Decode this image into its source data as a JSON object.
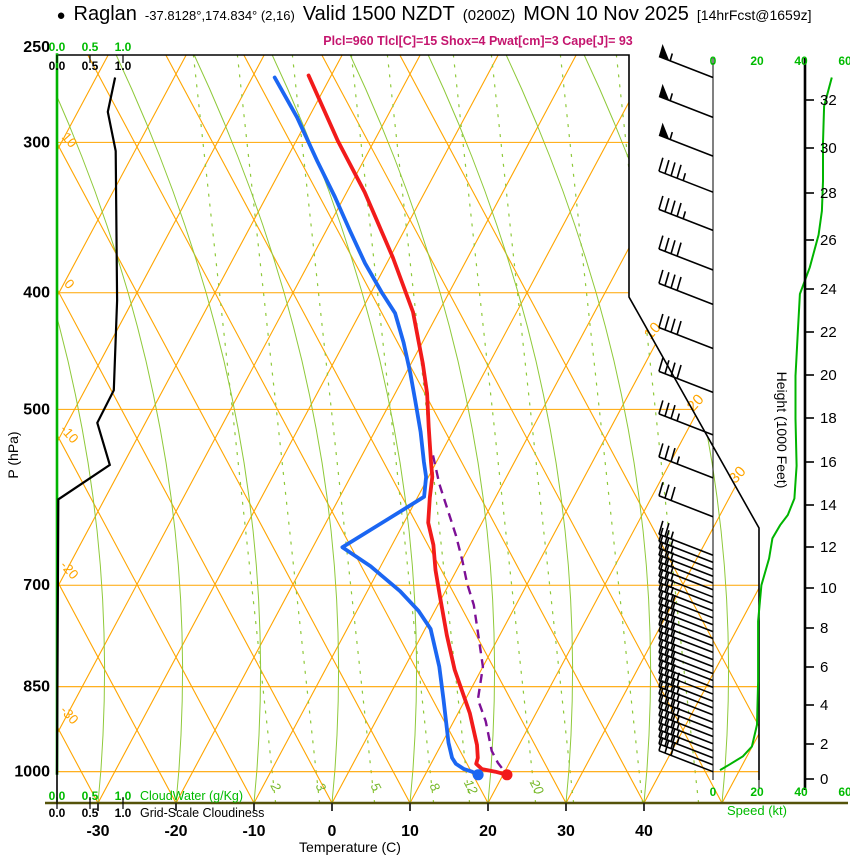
{
  "header": {
    "bullet": "●",
    "station": "Raglan",
    "coords": "-37.8128°,174.834° (2,16)",
    "valid": "Valid 1500 NZDT",
    "zulu": "(0200Z)",
    "date": "MON 10 Nov 2025",
    "fcst": "[14hrFcst@1659z]",
    "params": "Plcl=960 Tlcl[C]=15 Shox=4 Pwat[cm]=3 Cape[J]= 93"
  },
  "axes": {
    "pressure": {
      "label": "P (hPa)",
      "ticks": [
        250,
        300,
        400,
        500,
        700,
        850,
        1000
      ]
    },
    "temperature": {
      "label": "Temperature (C)",
      "ticks": [
        -30,
        -20,
        -10,
        0,
        10,
        20,
        30,
        40
      ]
    },
    "height": {
      "label": "Height (1000 Feet)",
      "ticks": [
        0,
        2,
        4,
        6,
        8,
        10,
        12,
        14,
        16,
        18,
        20,
        22,
        24,
        26,
        28,
        30,
        32
      ]
    },
    "speed": {
      "label": "Speed (kt)",
      "ticks": [
        0,
        20,
        40,
        60
      ]
    },
    "cloudwater": {
      "label": "CloudWater (g/Kg)",
      "ticks": [
        "0.0",
        "0.5",
        "1.0"
      ]
    },
    "cloudiness": {
      "label": "Grid-Scale Cloudiness",
      "ticks": [
        "0.0",
        "0.5",
        "1.0"
      ]
    }
  },
  "gridline_labels": {
    "dry_adiabats": [
      "10",
      "0",
      "-10",
      "-20",
      "-30"
    ],
    "isotherms": [
      "10",
      "20",
      "30"
    ],
    "mixing_ratio": [
      "2",
      "3",
      "5",
      "8",
      "12",
      "20"
    ]
  },
  "colors": {
    "isotherm_grid": "#FFA500",
    "moist_grid": "#8FC93A",
    "mixing_label": "#76B82A",
    "green_axis": "#00B400",
    "green_text": "#00BB00",
    "temperature_curve": "#F21B1B",
    "dewpoint_curve": "#1B66F2",
    "parcel_curve": "#7D1096",
    "params_text": "#C4156E",
    "cloud_curve": "#000000",
    "bottom_axis": "#55530A"
  },
  "chart_data": {
    "type": "skewt-log-p sounding",
    "pressure_range_hPa": [
      250,
      1060
    ],
    "temperature_range_C": [
      -35,
      45
    ],
    "temperature_profile": [
      [
        264,
        -52.9
      ],
      [
        299,
        -44.7
      ],
      [
        330,
        -37.7
      ],
      [
        374,
        -29.6
      ],
      [
        415,
        -23.3
      ],
      [
        458,
        -18.5
      ],
      [
        485,
        -15.9
      ],
      [
        517,
        -13.4
      ],
      [
        553,
        -10.7
      ],
      [
        569,
        -9.5
      ],
      [
        592,
        -8.4
      ],
      [
        621,
        -6.9
      ],
      [
        648,
        -4.7
      ],
      [
        680,
        -2.7
      ],
      [
        717,
        -0.2
      ],
      [
        770,
        3.2
      ],
      [
        823,
        6.6
      ],
      [
        894,
        11.5
      ],
      [
        950,
        14.6
      ],
      [
        974,
        15.6
      ],
      [
        985,
        15.8
      ],
      [
        995,
        16.9
      ],
      [
        1000,
        18.8
      ],
      [
        1006,
        20.5
      ]
    ],
    "dewpoint_profile": [
      [
        265,
        -57.1
      ],
      [
        286,
        -51.5
      ],
      [
        311,
        -45.9
      ],
      [
        333,
        -41.2
      ],
      [
        355,
        -37.0
      ],
      [
        378,
        -32.8
      ],
      [
        400,
        -28.6
      ],
      [
        416,
        -25.5
      ],
      [
        440,
        -22.4
      ],
      [
        466,
        -19.5
      ],
      [
        492,
        -16.9
      ],
      [
        522,
        -14.1
      ],
      [
        553,
        -11.6
      ],
      [
        569,
        -10.3
      ],
      [
        591,
        -9.2
      ],
      [
        651,
        -16.2
      ],
      [
        675,
        -11.3
      ],
      [
        708,
        -5.8
      ],
      [
        735,
        -2.1
      ],
      [
        761,
        0.7
      ],
      [
        818,
        4.4
      ],
      [
        871,
        7.2
      ],
      [
        946,
        10.8
      ],
      [
        974,
        12.3
      ],
      [
        985,
        13.2
      ],
      [
        995,
        14.6
      ],
      [
        1000,
        15.8
      ],
      [
        1006,
        16.8
      ]
    ],
    "parcel_profile": [
      [
        546,
        -10.9
      ],
      [
        577,
        -8.1
      ],
      [
        611,
        -4.8
      ],
      [
        637,
        -2.4
      ],
      [
        668,
        0.1
      ],
      [
        698,
        2.3
      ],
      [
        727,
        4.6
      ],
      [
        761,
        6.7
      ],
      [
        818,
        10.0
      ],
      [
        871,
        11.6
      ],
      [
        908,
        14.1
      ],
      [
        961,
        16.9
      ],
      [
        983,
        18.5
      ],
      [
        1006,
        20.5
      ]
    ],
    "surface_temperature_dot": [
      1006,
      20.5
    ],
    "surface_dewpoint_dot": [
      1006,
      16.8
    ],
    "cloudiness_profile": [
      [
        265,
        0.88
      ],
      [
        283,
        0.77
      ],
      [
        305,
        0.89
      ],
      [
        406,
        0.91
      ],
      [
        482,
        0.86
      ],
      [
        513,
        0.61
      ],
      [
        556,
        0.8
      ],
      [
        594,
        0.02
      ],
      [
        1006,
        0.0
      ]
    ],
    "cloudwater_profile": [
      [
        253,
        0.0
      ],
      [
        1006,
        0.0
      ]
    ],
    "wind_speed_profile_kt": [
      [
        265,
        54
      ],
      [
        280,
        50.5
      ],
      [
        300,
        50
      ],
      [
        323,
        50
      ],
      [
        342,
        49.5
      ],
      [
        358,
        48
      ],
      [
        381,
        44
      ],
      [
        401,
        39.5
      ],
      [
        433,
        38.5
      ],
      [
        469,
        37.5
      ],
      [
        509,
        37.5
      ],
      [
        557,
        38
      ],
      [
        593,
        37
      ],
      [
        612,
        34
      ],
      [
        624,
        30.5
      ],
      [
        640,
        27
      ],
      [
        665,
        25.5
      ],
      [
        700,
        22
      ],
      [
        750,
        20.5
      ],
      [
        842,
        20.5
      ],
      [
        914,
        20
      ],
      [
        953,
        17.7
      ],
      [
        971,
        13.6
      ],
      [
        986,
        7.7
      ],
      [
        997,
        3.2
      ]
    ],
    "wind_barbs_p_kt": [
      [
        265,
        55
      ],
      [
        286,
        55
      ],
      [
        308,
        55
      ],
      [
        330,
        45
      ],
      [
        355,
        45
      ],
      [
        383,
        40
      ],
      [
        409,
        40
      ],
      [
        445,
        40
      ],
      [
        484,
        40
      ],
      [
        525,
        35
      ],
      [
        570,
        35
      ],
      [
        614,
        30
      ],
      [
        661,
        25
      ],
      [
        670,
        25
      ],
      [
        679,
        25
      ],
      [
        688,
        25
      ],
      [
        697,
        25
      ],
      [
        706,
        25
      ],
      [
        716,
        25
      ],
      [
        725,
        25
      ],
      [
        735,
        25
      ],
      [
        745,
        25
      ],
      [
        755,
        30
      ],
      [
        765,
        30
      ],
      [
        775,
        30
      ],
      [
        786,
        30
      ],
      [
        796,
        30
      ],
      [
        807,
        30
      ],
      [
        818,
        30
      ],
      [
        829,
        30
      ],
      [
        840,
        30
      ],
      [
        851,
        30
      ],
      [
        862,
        35
      ],
      [
        874,
        35
      ],
      [
        885,
        35
      ],
      [
        897,
        35
      ],
      [
        910,
        35
      ],
      [
        922,
        35
      ],
      [
        935,
        35
      ],
      [
        948,
        35
      ],
      [
        961,
        35
      ],
      [
        974,
        35
      ],
      [
        987,
        30
      ],
      [
        1000,
        30
      ]
    ]
  }
}
